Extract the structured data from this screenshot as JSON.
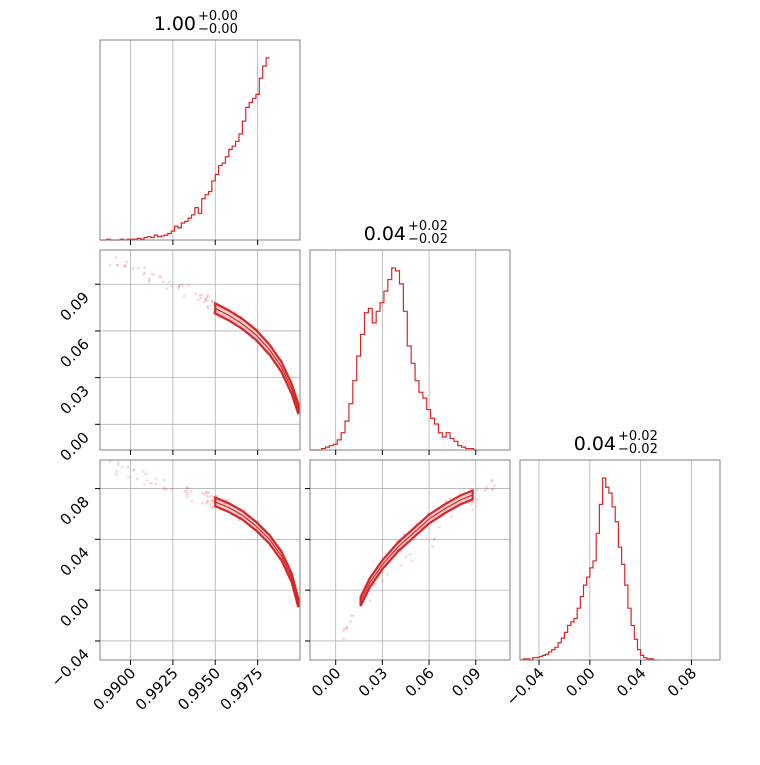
{
  "chart_data": {
    "type": "corner",
    "color": "#d62728",
    "grid": true,
    "parameters": [
      {
        "range": [
          0.9882,
          1.0
        ],
        "ticks": [
          0.99,
          0.9925,
          0.995,
          0.9975
        ],
        "tick_labels": [
          "0.9900",
          "0.9925",
          "0.9950",
          "0.9975"
        ],
        "title": {
          "main": "1.00",
          "sup": "+0.00",
          "sub": "−0.00"
        }
      },
      {
        "range": [
          -0.0165,
          0.112
        ],
        "ticks": [
          0.0,
          0.03,
          0.06,
          0.09
        ],
        "tick_labels": [
          "0.00",
          "0.03",
          "0.06",
          "0.09"
        ],
        "title": {
          "main": "0.04",
          "sup": "+0.02",
          "sub": "−0.02"
        }
      },
      {
        "range": [
          -0.055,
          0.1025
        ],
        "ticks": [
          -0.04,
          0.0,
          0.04,
          0.08
        ],
        "tick_labels": [
          "−0.04",
          "0.00",
          "0.04",
          "0.08"
        ],
        "title": {
          "main": "0.04",
          "sup": "+0.02",
          "sub": "−0.02"
        }
      }
    ],
    "histograms": [
      {
        "param": 0,
        "x_start": 0.9882,
        "bin_width": 0.0002,
        "counts": [
          0,
          0,
          1,
          0,
          0,
          0,
          1,
          0,
          1,
          1,
          1,
          2,
          1,
          3,
          4,
          3,
          6,
          4,
          5,
          6,
          8,
          11,
          17,
          15,
          21,
          23,
          27,
          31,
          40,
          33,
          51,
          56,
          60,
          73,
          81,
          92,
          95,
          103,
          112,
          116,
          122,
          131,
          147,
          164,
          170,
          175,
          180,
          200,
          215,
          225
        ]
      },
      {
        "param": 1,
        "x_start": -0.0165,
        "bin_width": 0.0025,
        "counts": [
          0,
          0,
          0,
          1,
          2,
          3,
          4,
          7,
          12,
          20,
          32,
          48,
          65,
          80,
          95,
          98,
          88,
          96,
          102,
          110,
          118,
          126,
          124,
          115,
          96,
          72,
          60,
          48,
          40,
          36,
          28,
          22,
          18,
          12,
          9,
          12,
          8,
          6,
          3,
          2,
          1,
          1,
          0
        ]
      },
      {
        "param": 2,
        "x_start": -0.055,
        "bin_width": 0.0025,
        "counts": [
          0,
          1,
          1,
          0,
          2,
          2,
          3,
          4,
          5,
          7,
          9,
          11,
          15,
          19,
          24,
          30,
          33,
          36,
          45,
          55,
          65,
          72,
          80,
          86,
          110,
          135,
          158,
          150,
          145,
          133,
          120,
          98,
          83,
          65,
          45,
          30,
          18,
          9,
          4,
          2,
          1,
          1,
          0
        ]
      }
    ],
    "scatter_panels": [
      {
        "x_param": 0,
        "y_param": 1,
        "ridge": [
          [
            0.995,
            0.0745
          ],
          [
            0.9958,
            0.07
          ],
          [
            0.9966,
            0.0645
          ],
          [
            0.9974,
            0.0575
          ],
          [
            0.9982,
            0.048
          ],
          [
            0.9989,
            0.037
          ],
          [
            0.9995,
            0.023
          ],
          [
            0.9999,
            0.01
          ]
        ],
        "band_halfwidth": 0.0032,
        "tail": [
          [
            0.9888,
            0.106
          ],
          [
            0.99,
            0.101
          ],
          [
            0.9912,
            0.095
          ],
          [
            0.9925,
            0.089
          ],
          [
            0.9935,
            0.085
          ],
          [
            0.9945,
            0.079
          ]
        ]
      },
      {
        "x_param": 0,
        "y_param": 2,
        "ridge": [
          [
            0.995,
            0.0695
          ],
          [
            0.9958,
            0.065
          ],
          [
            0.9966,
            0.059
          ],
          [
            0.9974,
            0.0505
          ],
          [
            0.9982,
            0.04
          ],
          [
            0.9989,
            0.027
          ],
          [
            0.9995,
            0.01
          ],
          [
            0.9999,
            -0.01
          ]
        ],
        "band_halfwidth": 0.0034,
        "tail": [
          [
            0.9888,
            0.0975
          ],
          [
            0.99,
            0.092
          ],
          [
            0.9912,
            0.086
          ],
          [
            0.9925,
            0.08
          ],
          [
            0.9935,
            0.0755
          ],
          [
            0.9945,
            0.072
          ]
        ]
      },
      {
        "x_param": 1,
        "y_param": 2,
        "ridge": [
          [
            0.016,
            -0.009
          ],
          [
            0.022,
            0.006
          ],
          [
            0.03,
            0.02
          ],
          [
            0.04,
            0.034
          ],
          [
            0.05,
            0.045
          ],
          [
            0.06,
            0.056
          ],
          [
            0.07,
            0.064
          ],
          [
            0.08,
            0.071
          ],
          [
            0.088,
            0.075
          ]
        ],
        "band_halfwidth": 0.0035,
        "tail": [
          [
            0.005,
            -0.035
          ],
          [
            0.01,
            -0.018
          ],
          [
            0.095,
            0.079
          ],
          [
            0.102,
            0.082
          ]
        ]
      }
    ]
  }
}
